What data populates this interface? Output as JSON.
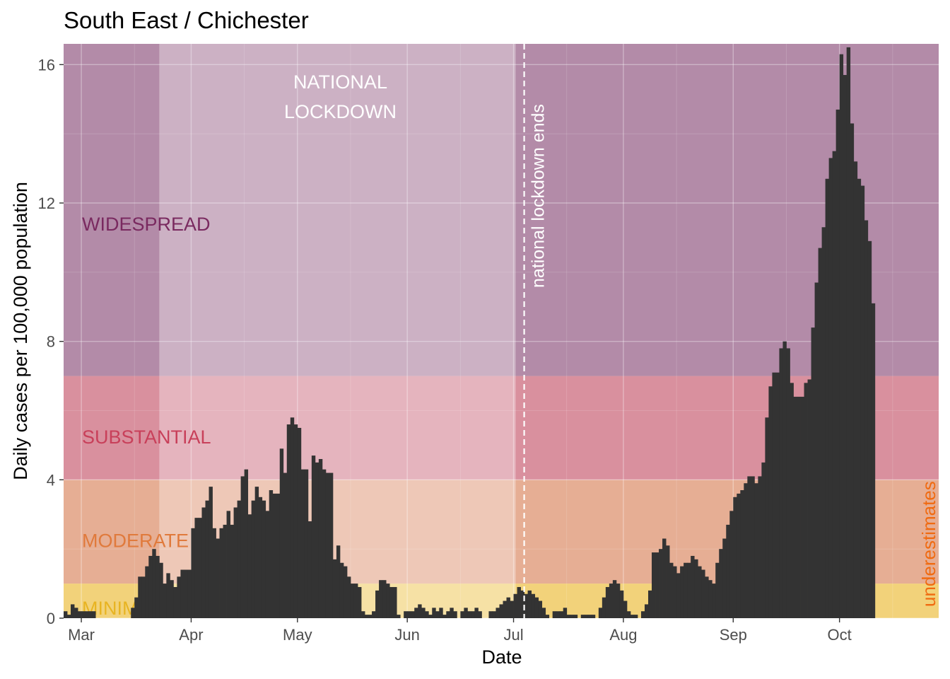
{
  "chart_data": {
    "type": "bar",
    "title": "South East / Chichester",
    "xlabel": "Date",
    "ylabel": "Daily cases per 100,000 population",
    "x_start_date": "2020-02-25",
    "x_end_date": "2020-10-28",
    "ylim": [
      0,
      16.6
    ],
    "y_ticks": [
      0,
      4,
      8,
      12,
      16
    ],
    "x_ticks": [
      {
        "label": "Mar",
        "date": "2020-03-01"
      },
      {
        "label": "Apr",
        "date": "2020-04-01"
      },
      {
        "label": "May",
        "date": "2020-05-01"
      },
      {
        "label": "Jun",
        "date": "2020-06-01"
      },
      {
        "label": "Jul",
        "date": "2020-07-01"
      },
      {
        "label": "Aug",
        "date": "2020-08-01"
      },
      {
        "label": "Sep",
        "date": "2020-09-01"
      },
      {
        "label": "Oct",
        "date": "2020-10-01"
      }
    ],
    "grid": true,
    "bands": [
      {
        "label": "MINIMAL",
        "from": 0,
        "to": 1,
        "color": "#f2d27a",
        "label_color": "#e8b422"
      },
      {
        "label": "MODERATE",
        "from": 1,
        "to": 4,
        "color": "#e6ae94",
        "label_color": "#e07a3c"
      },
      {
        "label": "SUBSTANTIAL",
        "from": 4,
        "to": 7,
        "color": "#d9909e",
        "label_color": "#c8405a"
      },
      {
        "label": "WIDESPREAD",
        "from": 7,
        "to": 16.6,
        "color": "#b38ba8",
        "label_color": "#7a2a60"
      }
    ],
    "lockdown": {
      "label_line1": "NATIONAL",
      "label_line2": "LOCKDOWN",
      "start": "2020-03-23",
      "end": "2020-07-04"
    },
    "lockdown_end_marker": {
      "label": "national lockdown ends",
      "date": "2020-07-04"
    },
    "underestimates_label": "underestimates",
    "bar_color": "#333333",
    "values": [
      0.2,
      0.1,
      0.4,
      0.3,
      0.2,
      0.2,
      0.2,
      0.2,
      0.2,
      0.0,
      0.0,
      0.0,
      0.0,
      0.0,
      0.0,
      0.0,
      0.0,
      0.0,
      0.0,
      0.3,
      0.6,
      1.2,
      1.2,
      1.5,
      1.8,
      2.0,
      1.8,
      1.6,
      1.0,
      1.3,
      1.1,
      0.9,
      1.2,
      1.4,
      1.4,
      1.4,
      2.6,
      2.9,
      2.9,
      3.2,
      3.4,
      3.8,
      2.6,
      2.3,
      2.6,
      2.7,
      3.1,
      2.7,
      3.2,
      3.4,
      4.1,
      4.3,
      3.0,
      3.4,
      3.8,
      3.5,
      3.4,
      3.1,
      3.7,
      3.6,
      3.6,
      4.9,
      4.2,
      5.6,
      5.8,
      5.6,
      5.5,
      4.3,
      4.3,
      2.8,
      4.7,
      4.5,
      4.6,
      4.3,
      4.2,
      4.2,
      1.7,
      2.1,
      1.6,
      1.5,
      1.2,
      1.0,
      1.0,
      0.9,
      0.2,
      0.1,
      0.1,
      0.2,
      0.8,
      1.1,
      1.1,
      1.0,
      0.9,
      0.9,
      0.1,
      0.0,
      0.2,
      0.2,
      0.2,
      0.3,
      0.4,
      0.3,
      0.2,
      0.1,
      0.3,
      0.2,
      0.3,
      0.1,
      0.2,
      0.3,
      0.2,
      0.0,
      0.2,
      0.3,
      0.2,
      0.2,
      0.3,
      0.2,
      0.0,
      0.0,
      0.2,
      0.2,
      0.3,
      0.4,
      0.5,
      0.6,
      0.5,
      0.7,
      0.9,
      0.8,
      0.7,
      0.8,
      0.7,
      0.6,
      0.5,
      0.3,
      0.1,
      0.0,
      0.2,
      0.2,
      0.2,
      0.3,
      0.1,
      0.1,
      0.1,
      0.0,
      0.1,
      0.1,
      0.1,
      0.1,
      0.0,
      0.3,
      0.6,
      0.9,
      1.0,
      1.1,
      1.0,
      0.8,
      0.5,
      0.2,
      0.1,
      0.1,
      0.0,
      0.2,
      0.4,
      0.8,
      1.9,
      1.9,
      2.0,
      2.3,
      2.1,
      1.6,
      1.5,
      1.3,
      1.5,
      1.6,
      1.6,
      1.8,
      1.7,
      1.5,
      1.4,
      1.2,
      1.1,
      1.0,
      1.6,
      2.0,
      2.3,
      2.7,
      3.1,
      3.5,
      3.6,
      3.7,
      3.9,
      4.1,
      4.1,
      3.9,
      4.1,
      4.5,
      5.8,
      6.7,
      7.1,
      7.1,
      7.8,
      8.0,
      7.8,
      6.8,
      6.4,
      6.4,
      6.4,
      6.8,
      6.9,
      8.4,
      9.7,
      10.7,
      11.3,
      12.7,
      13.3,
      13.5,
      14.7,
      16.3,
      15.7,
      16.5,
      14.3,
      13.2,
      12.7,
      12.5,
      11.5,
      10.9,
      9.1
    ]
  }
}
